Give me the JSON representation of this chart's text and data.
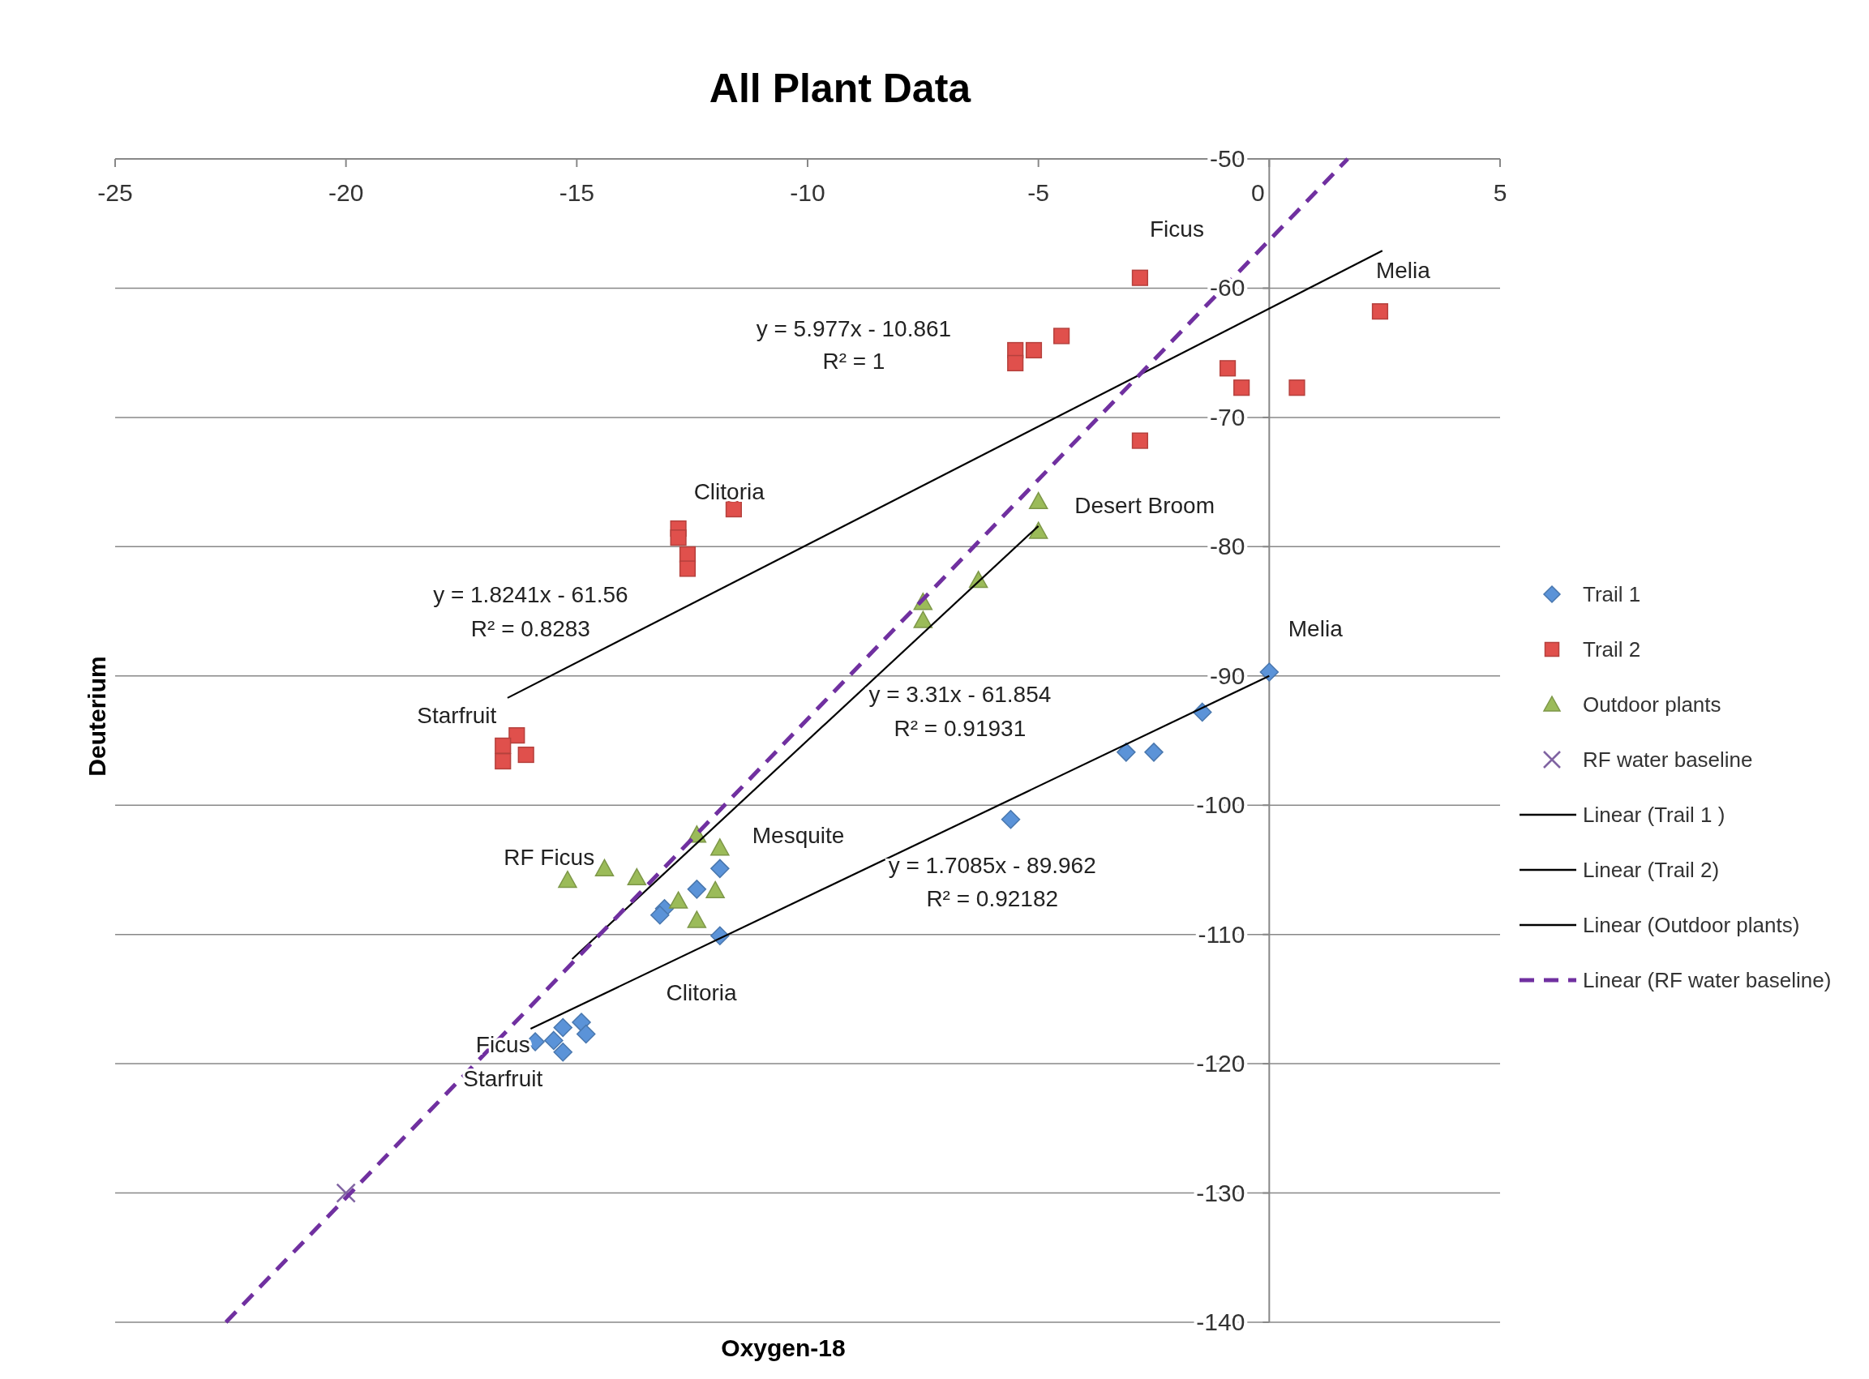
{
  "chart_data": {
    "type": "scatter",
    "title": "All Plant Data",
    "xlabel": "Oxygen-18",
    "ylabel": "Deuterium",
    "xlim": [
      -25,
      5
    ],
    "ylim": [
      -140,
      -50
    ],
    "xticks": [
      -25,
      -20,
      -15,
      -10,
      -5,
      0,
      5
    ],
    "yticks": [
      -50,
      -60,
      -70,
      -80,
      -90,
      -100,
      -110,
      -120,
      -130,
      -140
    ],
    "grid": "y",
    "legend": "right",
    "series": [
      {
        "name": "Trail 1",
        "marker": "diamond",
        "color": "#5b93d8",
        "x": [
          0,
          -1.45,
          -3.1,
          -2.5,
          -5.6,
          -11.9,
          -12.4,
          -13.1,
          -13.2,
          -11.9,
          -15.9,
          -15.3,
          -14.9,
          -14.8,
          -15.3,
          -15.5
        ],
        "values": [
          -89.7,
          -92.8,
          -95.9,
          -95.9,
          -101.1,
          -104.9,
          -106.5,
          -108.0,
          -108.5,
          -110.1,
          -118.3,
          -117.2,
          -116.8,
          -117.7,
          -119.1,
          -118.2
        ]
      },
      {
        "name": "Trail 2",
        "marker": "square",
        "color": "#e0504c",
        "x": [
          -2.8,
          2.4,
          -4.5,
          -5.1,
          -5.5,
          -5.5,
          -0.9,
          -0.6,
          0.6,
          -2.8,
          -11.6,
          -12.8,
          -12.8,
          -12.6,
          -12.6,
          -16.3,
          -16.6,
          -16.1,
          -16.6
        ],
        "values": [
          -59.2,
          -61.8,
          -63.7,
          -64.8,
          -64.8,
          -65.8,
          -66.2,
          -67.7,
          -67.7,
          -71.8,
          -77.1,
          -78.6,
          -79.3,
          -80.6,
          -81.7,
          -94.6,
          -95.4,
          -96.1,
          -96.6
        ]
      },
      {
        "name": "Outdoor plants",
        "marker": "triangle",
        "color": "#9bbb59",
        "x": [
          -5.0,
          -5.0,
          -6.3,
          -7.5,
          -7.5,
          -12.4,
          -11.9,
          -15.2,
          -14.4,
          -13.7,
          -12.8,
          -12.0,
          -12.4
        ],
        "values": [
          -76.5,
          -78.8,
          -82.6,
          -84.3,
          -85.7,
          -102.3,
          -103.3,
          -105.8,
          -104.9,
          -105.6,
          -107.4,
          -106.6,
          -108.9
        ]
      },
      {
        "name": "RF water baseline",
        "marker": "cross",
        "color": "#8064a2",
        "x": [
          -20
        ],
        "values": [
          -130
        ]
      },
      {
        "name": "Linear  (Trail 1 )",
        "type": "line",
        "color": "#000000",
        "line_style": "solid",
        "x": [
          -16,
          0
        ],
        "values": [
          -117.3,
          -90
        ]
      },
      {
        "name": "Linear  (Trail 2)",
        "type": "line",
        "color": "#000000",
        "line_style": "solid",
        "x": [
          -16.5,
          2.45
        ],
        "values": [
          -91.7,
          -57.1
        ]
      },
      {
        "name": "Linear  (Outdoor plants)",
        "type": "line",
        "color": "#000000",
        "line_style": "solid",
        "x": [
          -15.1,
          -5.0
        ],
        "values": [
          -111.9,
          -78.4
        ]
      },
      {
        "name": "Linear  (RF water baseline)",
        "type": "line",
        "color": "#7030a0",
        "line_style": "dashed",
        "x": [
          -22.6,
          1.7
        ],
        "values": [
          -140,
          -50
        ]
      }
    ],
    "annotations": [
      "Ficus",
      "Melia",
      "y = 5.977x - 10.861",
      "R² = 1",
      "Clitoria",
      "Desert Broom",
      "y = 1.8241x - 61.56",
      "R² = 0.8283",
      "Melia",
      "Starfruit",
      "y = 3.31x - 61.854",
      "R² = 0.91931",
      "Mesquite",
      "RF Ficus",
      "y = 1.7085x - 89.962",
      "R² = 0.92182",
      "Clitoria",
      "Ficus",
      "Starfruit"
    ]
  }
}
